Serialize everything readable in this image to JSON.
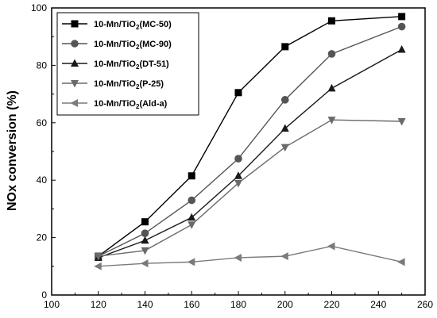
{
  "chart_data": {
    "type": "line",
    "title": "",
    "xlabel": "",
    "ylabel": "NOx conversion (%)",
    "xlim": [
      100,
      260
    ],
    "ylim": [
      0,
      100
    ],
    "xticks": [
      100,
      120,
      140,
      160,
      180,
      200,
      220,
      240,
      260
    ],
    "yticks": [
      0,
      20,
      40,
      60,
      80,
      100
    ],
    "legend_position": "top-left",
    "grid": false,
    "series": [
      {
        "name": "10-Mn/TiO2(MC-50)",
        "label_main": "10-Mn/TiO",
        "label_sub": "2",
        "label_tail": "(MC-50)",
        "marker": "square",
        "color": "#000000",
        "x": [
          120,
          140,
          160,
          180,
          200,
          220,
          250
        ],
        "y": [
          13.5,
          25.5,
          41.5,
          70.5,
          86.5,
          95.5,
          97
        ]
      },
      {
        "name": "10-Mn/TiO2(MC-90)",
        "label_main": "10-Mn/TiO",
        "label_sub": "2",
        "label_tail": "(MC-90)",
        "marker": "circle",
        "color": "#555555",
        "x": [
          120,
          140,
          160,
          180,
          200,
          220,
          250
        ],
        "y": [
          13.5,
          21.5,
          33,
          47.5,
          68,
          84,
          93.5
        ]
      },
      {
        "name": "10-Mn/TiO2(DT-51)",
        "label_main": "10-Mn/TiO",
        "label_sub": "2",
        "label_tail": "(DT-51)",
        "marker": "triangle-up",
        "color": "#1a1a1a",
        "x": [
          120,
          140,
          160,
          180,
          200,
          220,
          250
        ],
        "y": [
          13,
          19,
          27,
          41.5,
          58,
          72,
          85.5
        ]
      },
      {
        "name": "10-Mn/TiO2(P-25)",
        "label_main": "10-Mn/TiO",
        "label_sub": "2",
        "label_tail": "(P-25)",
        "marker": "triangle-down",
        "color": "#6a6a6a",
        "x": [
          120,
          140,
          160,
          180,
          200,
          220,
          250
        ],
        "y": [
          13.5,
          15.5,
          24.5,
          39,
          51.5,
          61,
          60.5
        ]
      },
      {
        "name": "10-Mn/TiO2(Ald-a)",
        "label_main": "10-Mn/TiO",
        "label_sub": "2",
        "label_tail": "(Ald-a)",
        "marker": "triangle-left",
        "color": "#7a7a7a",
        "x": [
          120,
          140,
          160,
          180,
          200,
          220,
          250
        ],
        "y": [
          10,
          11,
          11.5,
          13,
          13.5,
          17,
          11.5
        ]
      }
    ]
  }
}
